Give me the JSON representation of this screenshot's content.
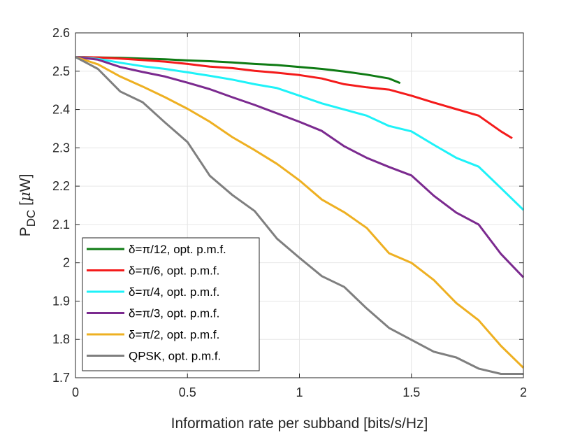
{
  "chart_data": {
    "type": "line",
    "title": "",
    "xlabel": "Information rate per subband [bits/s/Hz]",
    "ylabel": {
      "main": "P",
      "sub": "DC",
      "unit_open": " [",
      "unit_mu": "μ",
      "unit_rest": "W]"
    },
    "xlim": [
      0,
      2
    ],
    "ylim": [
      1.7,
      2.6
    ],
    "xticks": [
      "0",
      "0.5",
      "1",
      "1.5",
      "2"
    ],
    "yticks": [
      "1.7",
      "1.8",
      "1.9",
      "2",
      "2.1",
      "2.2",
      "2.3",
      "2.4",
      "2.5",
      "2.6"
    ],
    "grid": true,
    "legend_position": "bottom-left",
    "series": [
      {
        "name": "δ=π/12, opt. p.m.f.",
        "color": "#0f7b14",
        "x": [
          0,
          0.1,
          0.2,
          0.3,
          0.4,
          0.5,
          0.6,
          0.7,
          0.8,
          0.9,
          1.0,
          1.1,
          1.2,
          1.3,
          1.4,
          1.45
        ],
        "y": [
          2.537,
          2.536,
          2.535,
          2.533,
          2.531,
          2.528,
          2.526,
          2.523,
          2.519,
          2.516,
          2.511,
          2.506,
          2.499,
          2.491,
          2.481,
          2.469
        ]
      },
      {
        "name": "δ=π/6, opt. p.m.f.",
        "color": "#f41b1b",
        "x": [
          0,
          0.1,
          0.2,
          0.3,
          0.4,
          0.5,
          0.6,
          0.7,
          0.8,
          0.9,
          1.0,
          1.1,
          1.2,
          1.3,
          1.4,
          1.5,
          1.6,
          1.7,
          1.8,
          1.9,
          1.95
        ],
        "y": [
          2.537,
          2.536,
          2.533,
          2.529,
          2.525,
          2.519,
          2.512,
          2.508,
          2.501,
          2.496,
          2.49,
          2.481,
          2.466,
          2.458,
          2.452,
          2.436,
          2.418,
          2.401,
          2.384,
          2.343,
          2.325
        ]
      },
      {
        "name": "δ=π/4, opt. p.m.f.",
        "color": "#1ef2f8",
        "x": [
          0,
          0.1,
          0.2,
          0.3,
          0.4,
          0.5,
          0.6,
          0.7,
          0.8,
          0.9,
          1.0,
          1.1,
          1.2,
          1.3,
          1.4,
          1.5,
          1.6,
          1.7,
          1.8,
          1.9,
          2.0
        ],
        "y": [
          2.537,
          2.532,
          2.522,
          2.513,
          2.506,
          2.497,
          2.488,
          2.478,
          2.466,
          2.456,
          2.436,
          2.416,
          2.4,
          2.384,
          2.357,
          2.343,
          2.308,
          2.274,
          2.251,
          2.195,
          2.138
        ]
      },
      {
        "name": "δ=π/3, opt. p.m.f.",
        "color": "#7b2a8f",
        "x": [
          0,
          0.1,
          0.2,
          0.3,
          0.4,
          0.5,
          0.6,
          0.7,
          0.8,
          0.9,
          1.0,
          1.1,
          1.2,
          1.3,
          1.4,
          1.5,
          1.6,
          1.7,
          1.8,
          1.9,
          2.0
        ],
        "y": [
          2.537,
          2.53,
          2.511,
          2.498,
          2.486,
          2.47,
          2.453,
          2.432,
          2.412,
          2.39,
          2.368,
          2.344,
          2.304,
          2.274,
          2.25,
          2.228,
          2.175,
          2.131,
          2.1,
          2.023,
          1.962
        ]
      },
      {
        "name": "δ=π/2, opt. p.m.f.",
        "color": "#eeb022",
        "x": [
          0,
          0.1,
          0.2,
          0.3,
          0.4,
          0.5,
          0.6,
          0.7,
          0.8,
          0.9,
          1.0,
          1.1,
          1.2,
          1.3,
          1.4,
          1.5,
          1.6,
          1.7,
          1.8,
          1.9,
          2.0
        ],
        "y": [
          2.537,
          2.518,
          2.486,
          2.46,
          2.432,
          2.402,
          2.368,
          2.328,
          2.294,
          2.258,
          2.215,
          2.165,
          2.132,
          2.091,
          2.025,
          2.0,
          1.955,
          1.895,
          1.85,
          1.783,
          1.726
        ]
      },
      {
        "name": "QPSK, opt. p.m.f.",
        "color": "#7f7f7f",
        "x": [
          0,
          0.1,
          0.2,
          0.3,
          0.4,
          0.5,
          0.6,
          0.7,
          0.8,
          0.9,
          1.0,
          1.1,
          1.2,
          1.3,
          1.4,
          1.5,
          1.6,
          1.7,
          1.8,
          1.9,
          2.0
        ],
        "y": [
          2.537,
          2.506,
          2.447,
          2.419,
          2.366,
          2.315,
          2.227,
          2.177,
          2.135,
          2.063,
          2.013,
          1.965,
          1.937,
          1.881,
          1.83,
          1.799,
          1.768,
          1.753,
          1.724,
          1.71,
          1.71
        ]
      }
    ]
  }
}
